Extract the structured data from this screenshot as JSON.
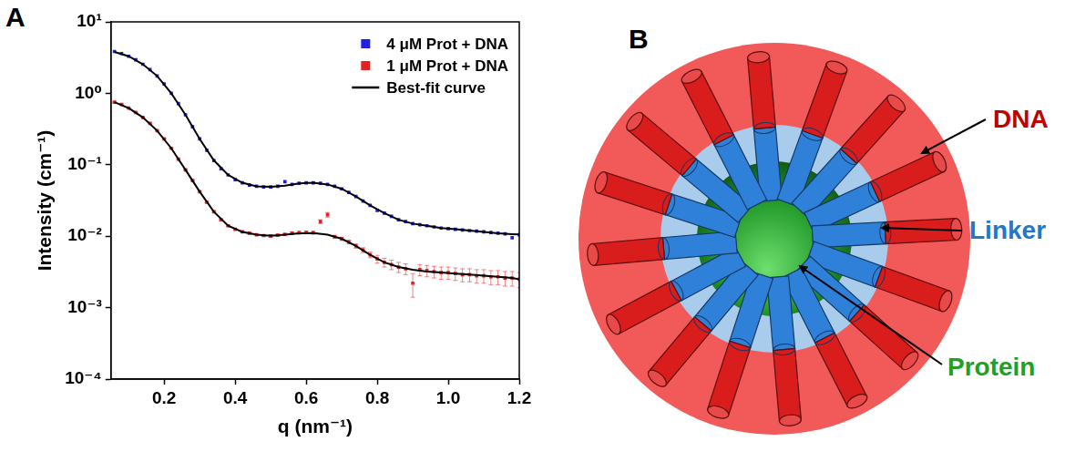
{
  "chart_data": {
    "panel": "A",
    "type": "scatter",
    "log": "y",
    "grid": false,
    "legend": "upper right",
    "xlabel": "q (nm⁻¹)",
    "ylabel": "Intensity (cm⁻¹)",
    "xlim": [
      0.05,
      1.2
    ],
    "xticks": [
      0.2,
      0.4,
      0.6,
      0.8,
      {
        "value": 1,
        "label": "1.0"
      },
      1.2
    ],
    "ylim": [
      0.0001,
      10
    ],
    "yticks": [
      {
        "value": 0.0001,
        "label": "10⁻⁴"
      },
      {
        "value": 0.001,
        "label": "10⁻³"
      },
      {
        "value": 0.01,
        "label": "10⁻²"
      },
      {
        "value": 0.1,
        "label": "10⁻¹"
      },
      {
        "value": 1,
        "label": "10⁰"
      },
      {
        "value": 10,
        "label": "10¹"
      }
    ],
    "series": [
      {
        "name": "4 μM Prot + DNA",
        "color": "#1f1fe6",
        "type": "scatter",
        "marker": "square",
        "x": [
          0.06,
          0.08,
          0.1,
          0.12,
          0.14,
          0.16,
          0.18,
          0.2,
          0.22,
          0.24,
          0.26,
          0.28,
          0.3,
          0.32,
          0.34,
          0.36,
          0.38,
          0.4,
          0.42,
          0.44,
          0.46,
          0.48,
          0.5,
          0.52,
          0.54,
          0.56,
          0.58,
          0.6,
          0.62,
          0.64,
          0.66,
          0.68,
          0.7,
          0.72,
          0.74,
          0.76,
          0.78,
          0.8,
          0.82,
          0.84,
          0.86,
          0.88,
          0.9,
          0.92,
          0.94,
          0.96,
          0.98,
          1.0,
          1.02,
          1.04,
          1.06,
          1.08,
          1.1,
          1.12,
          1.14,
          1.16,
          1.18,
          1.2
        ],
        "values": [
          3.85,
          3.6,
          3.3,
          2.95,
          2.55,
          2.15,
          1.75,
          1.35,
          1.0,
          0.72,
          0.5,
          0.34,
          0.23,
          0.16,
          0.115,
          0.088,
          0.072,
          0.062,
          0.056,
          0.052,
          0.05,
          0.049,
          0.049,
          0.05,
          0.058,
          0.053,
          0.055,
          0.056,
          0.056,
          0.055,
          0.053,
          0.05,
          0.046,
          0.041,
          0.036,
          0.031,
          0.027,
          0.023,
          0.021,
          0.019,
          0.017,
          0.016,
          0.015,
          0.0145,
          0.014,
          0.0135,
          0.013,
          0.0128,
          0.0125,
          0.0122,
          0.012,
          0.0118,
          0.0115,
          0.0113,
          0.011,
          0.0108,
          0.0095,
          0.0105
        ]
      },
      {
        "name": "1 μM Prot + DNA",
        "color": "#e62020",
        "type": "scatter",
        "marker": "square",
        "x": [
          0.06,
          0.08,
          0.1,
          0.12,
          0.14,
          0.16,
          0.18,
          0.2,
          0.22,
          0.24,
          0.26,
          0.28,
          0.3,
          0.32,
          0.34,
          0.36,
          0.38,
          0.4,
          0.42,
          0.44,
          0.46,
          0.48,
          0.5,
          0.52,
          0.54,
          0.56,
          0.58,
          0.6,
          0.62,
          0.64,
          0.66,
          0.68,
          0.7,
          0.72,
          0.74,
          0.76,
          0.78,
          0.8,
          0.82,
          0.84,
          0.86,
          0.88,
          0.9,
          0.92,
          0.94,
          0.96,
          0.98,
          1.0,
          1.02,
          1.04,
          1.06,
          1.08,
          1.1,
          1.12,
          1.14,
          1.16,
          1.18,
          1.2
        ],
        "values": [
          0.75,
          0.7,
          0.62,
          0.54,
          0.46,
          0.38,
          0.3,
          0.23,
          0.17,
          0.12,
          0.085,
          0.06,
          0.042,
          0.03,
          0.022,
          0.017,
          0.014,
          0.0125,
          0.0115,
          0.011,
          0.0105,
          0.0102,
          0.0101,
          0.0103,
          0.0106,
          0.011,
          0.0112,
          0.0113,
          0.0112,
          0.016,
          0.02,
          0.0098,
          0.0092,
          0.0083,
          0.0073,
          0.0064,
          0.0055,
          0.0048,
          0.0043,
          0.004,
          0.0037,
          0.0035,
          0.0022,
          0.0034,
          0.0033,
          0.0032,
          0.0031,
          0.0031,
          0.003,
          0.0029,
          0.0029,
          0.0028,
          0.0028,
          0.0027,
          0.0027,
          0.0026,
          0.0026,
          0.0025
        ],
        "errors": [
          0.01,
          0.01,
          0.008,
          0.007,
          0.006,
          0.005,
          0.004,
          0.003,
          0.002,
          0.002,
          0.0015,
          0.001,
          0.0008,
          0.0006,
          0.0005,
          0.0004,
          0.0004,
          0.0003,
          0.0003,
          0.0003,
          0.0003,
          0.0003,
          0.0004,
          0.0004,
          0.0004,
          0.0005,
          0.0005,
          0.0005,
          0.0005,
          0.001,
          0.0015,
          0.0005,
          0.0005,
          0.0005,
          0.0005,
          0.0005,
          0.0005,
          0.0006,
          0.0006,
          0.0006,
          0.0006,
          0.0006,
          0.0008,
          0.0006,
          0.0006,
          0.0006,
          0.0006,
          0.0006,
          0.0006,
          0.0006,
          0.0006,
          0.0006,
          0.0006,
          0.0006,
          0.0006,
          0.0006,
          0.0006,
          0.0006
        ]
      },
      {
        "name": "Best-fit curve",
        "color": "#000000",
        "type": "line",
        "line_style": "solid",
        "x": [
          0.06,
          0.1,
          0.14,
          0.18,
          0.22,
          0.26,
          0.3,
          0.34,
          0.38,
          0.42,
          0.46,
          0.5,
          0.54,
          0.58,
          0.62,
          0.66,
          0.7,
          0.74,
          0.78,
          0.82,
          0.86,
          0.9,
          0.94,
          0.98,
          1.02,
          1.06,
          1.1,
          1.14,
          1.18,
          1.2,
          null,
          0.06,
          0.1,
          0.14,
          0.18,
          0.22,
          0.26,
          0.3,
          0.34,
          0.38,
          0.42,
          0.46,
          0.5,
          0.54,
          0.58,
          0.62,
          0.66,
          0.7,
          0.74,
          0.78,
          0.82,
          0.86,
          0.9,
          0.94,
          0.98,
          1.02,
          1.06,
          1.1,
          1.14,
          1.18,
          1.2
        ],
        "values": [
          3.8,
          3.3,
          2.55,
          1.75,
          1.0,
          0.5,
          0.23,
          0.115,
          0.072,
          0.056,
          0.05,
          0.049,
          0.051,
          0.055,
          0.056,
          0.053,
          0.046,
          0.036,
          0.027,
          0.021,
          0.017,
          0.015,
          0.014,
          0.013,
          0.0125,
          0.012,
          0.0115,
          0.011,
          0.0107,
          0.0106,
          null,
          0.75,
          0.62,
          0.46,
          0.3,
          0.17,
          0.085,
          0.042,
          0.022,
          0.014,
          0.0115,
          0.0105,
          0.0101,
          0.0105,
          0.011,
          0.0111,
          0.0105,
          0.0092,
          0.0073,
          0.0055,
          0.0043,
          0.0037,
          0.0034,
          0.0032,
          0.0031,
          0.003,
          0.0029,
          0.0028,
          0.0027,
          0.0026,
          0.0025
        ]
      }
    ]
  },
  "diagram": {
    "panel": "B",
    "labels": [
      {
        "text": "DNA",
        "color": "#c00000"
      },
      {
        "text": "Linker",
        "color": "#1f78c8"
      },
      {
        "text": "Protein",
        "color": "#22a022"
      }
    ]
  }
}
